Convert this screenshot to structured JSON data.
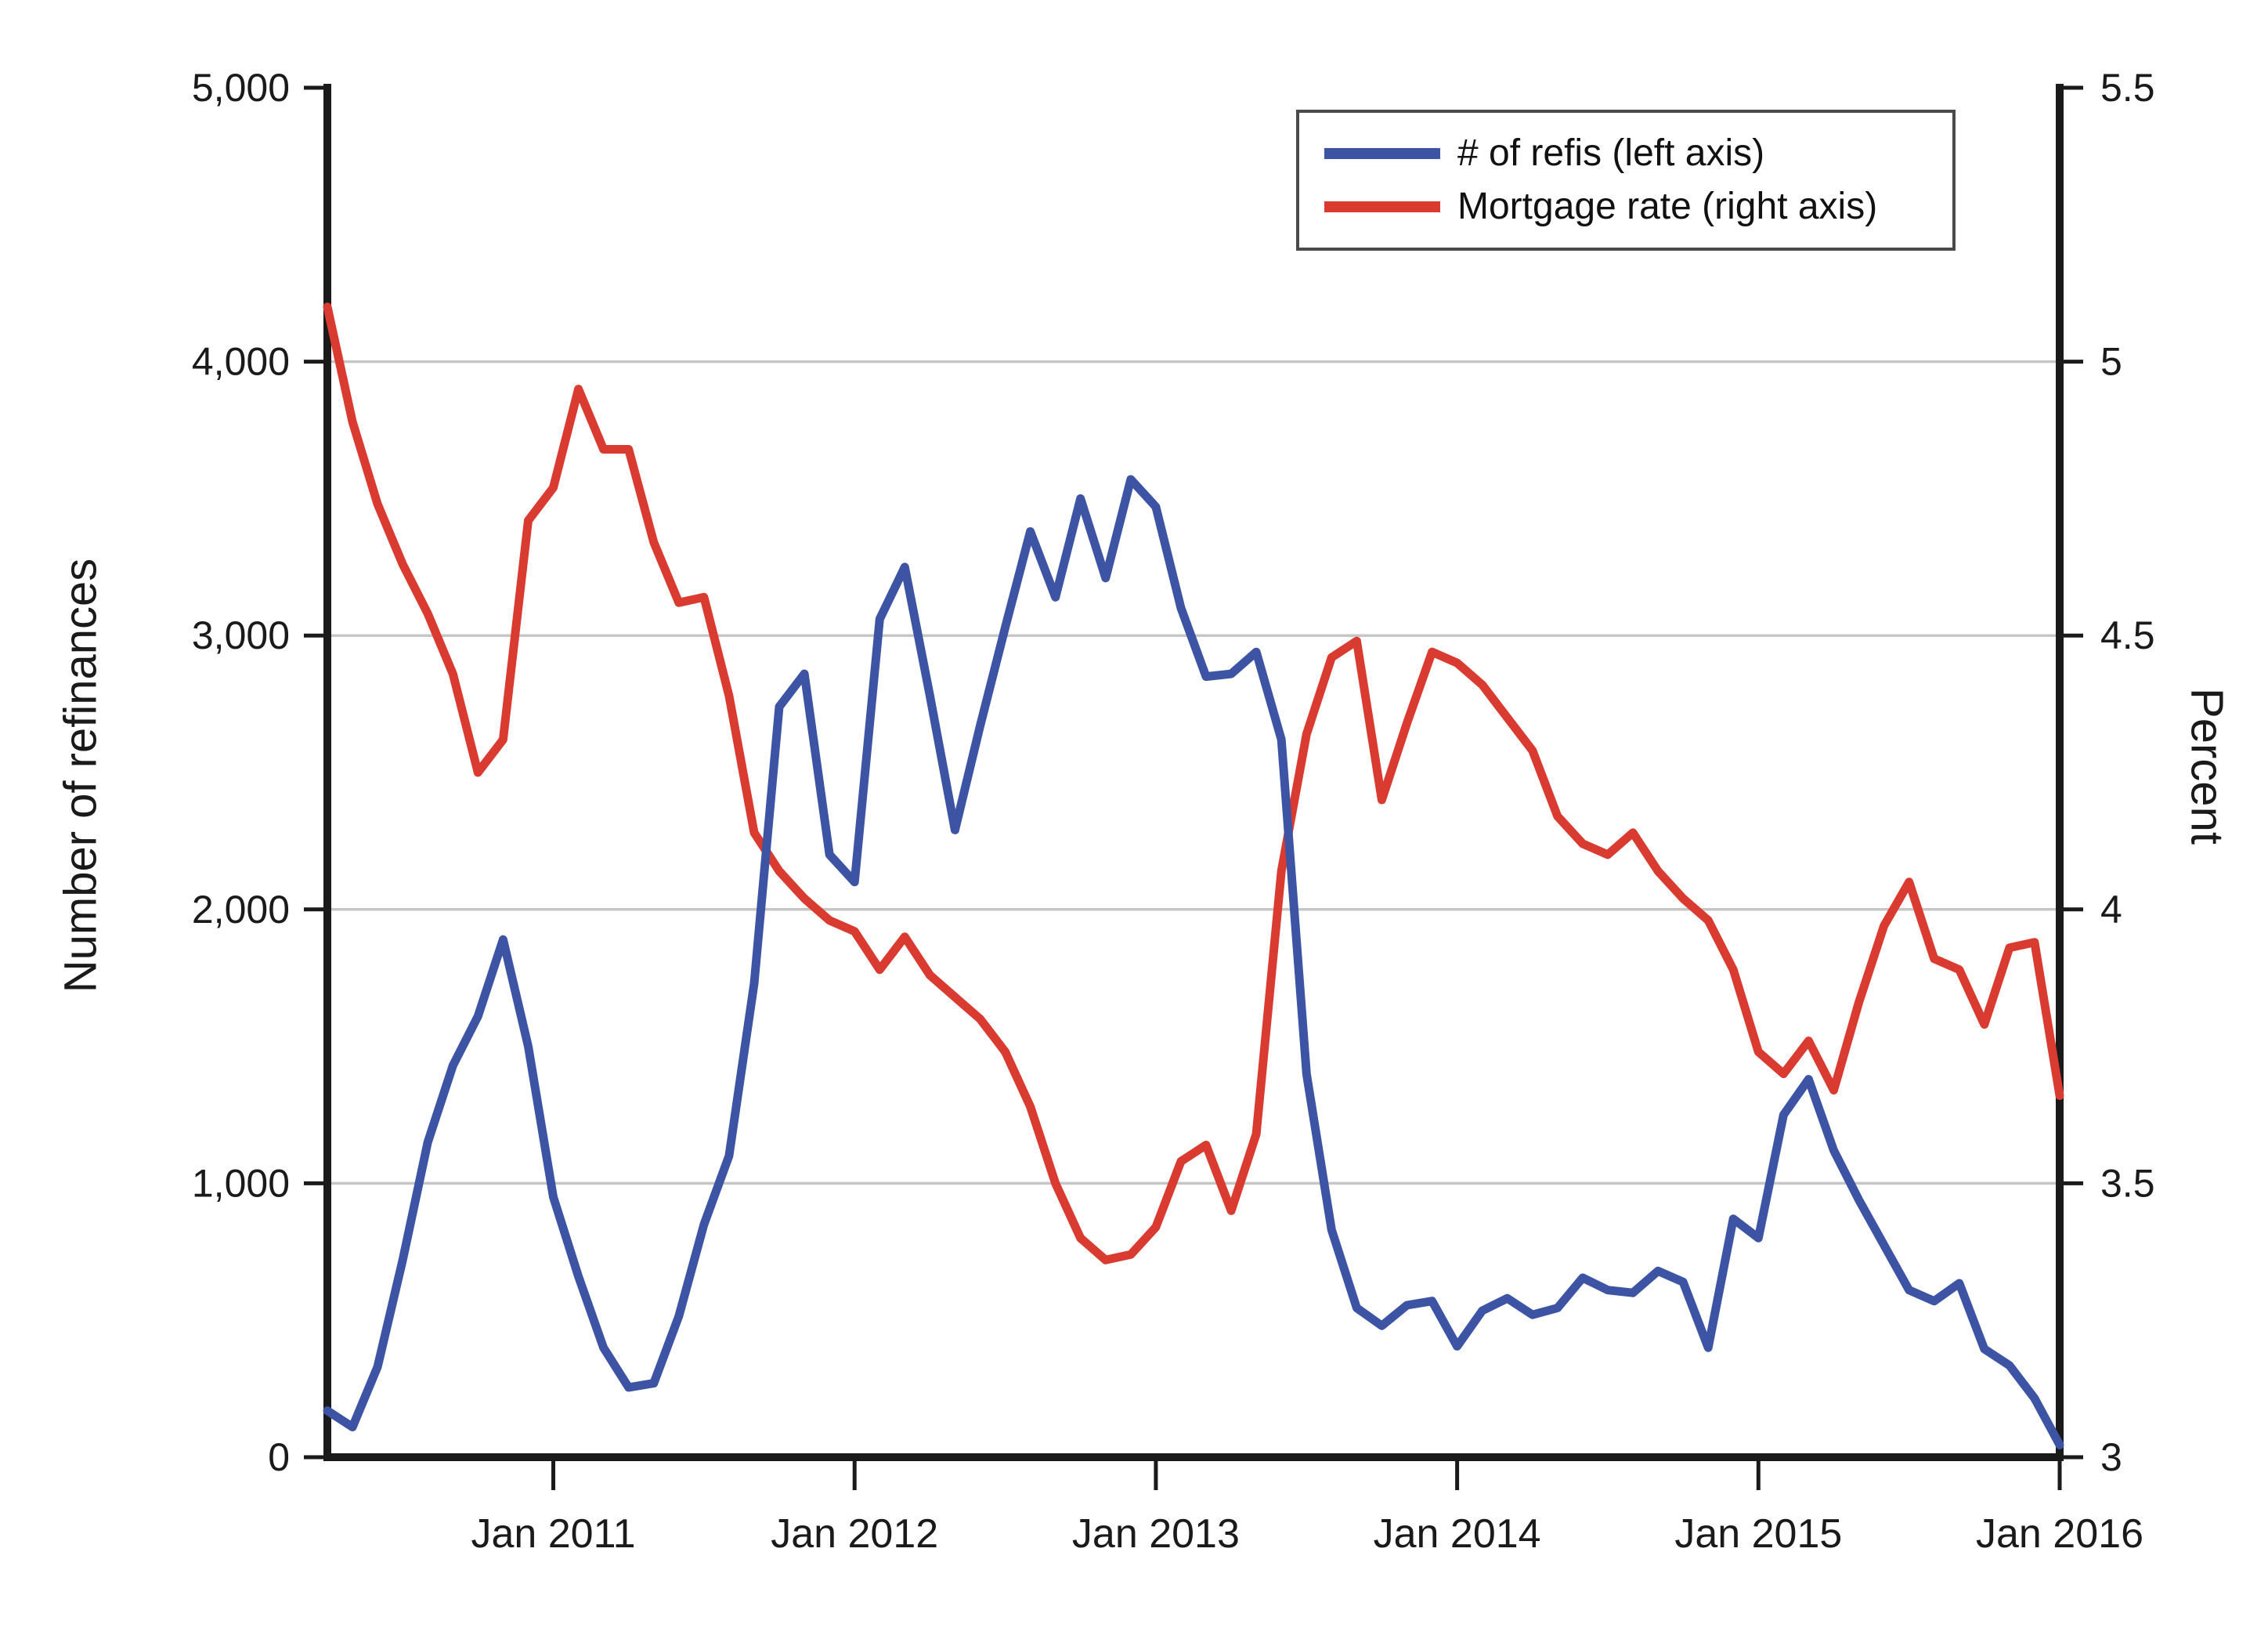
{
  "figure": {
    "left_axis_title": "Number of refinances",
    "right_axis_title": "Percent",
    "legend": [
      {
        "label": "# of refis (left axis)",
        "color": "#3d54a4"
      },
      {
        "label": "Mortgage rate (right axis)",
        "color": "#d93b31"
      }
    ]
  },
  "chart_data": {
    "type": "line",
    "title": "",
    "xlabel": "",
    "ylabel_left": "Number of refinances",
    "ylabel_right": "Percent",
    "grid": "horizontal",
    "legend_position": "top-right",
    "background": "#ffffff",
    "gridline_color": "#c6c6c6",
    "axis_color": "#1a1a1a",
    "months": [
      "Apr 2010",
      "May 2010",
      "Jun 2010",
      "Jul 2010",
      "Aug 2010",
      "Sep 2010",
      "Oct 2010",
      "Nov 2010",
      "Dec 2010",
      "Jan 2011",
      "Feb 2011",
      "Mar 2011",
      "Apr 2011",
      "May 2011",
      "Jun 2011",
      "Jul 2011",
      "Aug 2011",
      "Sep 2011",
      "Oct 2011",
      "Nov 2011",
      "Dec 2011",
      "Jan 2012",
      "Feb 2012",
      "Mar 2012",
      "Apr 2012",
      "May 2012",
      "Jun 2012",
      "Jul 2012",
      "Aug 2012",
      "Sep 2012",
      "Oct 2012",
      "Nov 2012",
      "Dec 2012",
      "Jan 2013",
      "Feb 2013",
      "Mar 2013",
      "Apr 2013",
      "May 2013",
      "Jun 2013",
      "Jul 2013",
      "Aug 2013",
      "Sep 2013",
      "Oct 2013",
      "Nov 2013",
      "Dec 2013",
      "Jan 2014",
      "Feb 2014",
      "Mar 2014",
      "Apr 2014",
      "May 2014",
      "Jun 2014",
      "Jul 2014",
      "Aug 2014",
      "Sep 2014",
      "Oct 2014",
      "Nov 2014",
      "Dec 2014",
      "Jan 2015",
      "Feb 2015",
      "Mar 2015",
      "Apr 2015",
      "May 2015",
      "Jun 2015",
      "Jul 2015",
      "Aug 2015",
      "Sep 2015",
      "Oct 2015",
      "Nov 2015",
      "Dec 2015",
      "Jan 2016"
    ],
    "series": [
      {
        "name": "# of refis (left axis)",
        "axis": "left",
        "color": "#3d54a4",
        "values": [
          170,
          110,
          330,
          720,
          1150,
          1430,
          1610,
          1890,
          1500,
          950,
          660,
          400,
          255,
          270,
          515,
          850,
          1100,
          1730,
          2740,
          2860,
          2200,
          2100,
          3060,
          3250,
          2780,
          2290,
          2670,
          3030,
          3380,
          3140,
          3500,
          3210,
          3570,
          3470,
          3100,
          2850,
          2860,
          2940,
          2620,
          1400,
          830,
          545,
          480,
          555,
          570,
          405,
          535,
          580,
          520,
          545,
          655,
          610,
          600,
          680,
          640,
          400,
          870,
          800,
          1250,
          1380,
          1120,
          940,
          775,
          610,
          570,
          635,
          395,
          335,
          215,
          45
        ]
      },
      {
        "name": "Mortgage rate (right axis)",
        "axis": "right",
        "color": "#d93b31",
        "values": [
          5.1,
          4.89,
          4.74,
          4.63,
          4.54,
          4.43,
          4.25,
          4.31,
          4.71,
          4.77,
          4.95,
          4.84,
          4.84,
          4.67,
          4.56,
          4.57,
          4.39,
          4.14,
          4.07,
          4.02,
          3.98,
          3.96,
          3.89,
          3.95,
          3.88,
          3.84,
          3.8,
          3.74,
          3.64,
          3.5,
          3.4,
          3.36,
          3.37,
          3.42,
          3.54,
          3.57,
          3.45,
          3.59,
          4.07,
          4.32,
          4.46,
          4.49,
          4.2,
          4.34,
          4.47,
          4.45,
          4.41,
          4.35,
          4.29,
          4.17,
          4.12,
          4.1,
          4.14,
          4.07,
          4.02,
          3.98,
          3.89,
          3.74,
          3.7,
          3.76,
          3.67,
          3.83,
          3.97,
          4.05,
          3.91,
          3.89,
          3.79,
          3.93,
          3.94,
          3.66
        ]
      }
    ],
    "left_axis": {
      "min": 0,
      "max": 5000,
      "ticks": [
        0,
        1000,
        2000,
        3000,
        4000,
        5000
      ],
      "tick_labels": [
        "0",
        "1,000",
        "2,000",
        "3,000",
        "4,000",
        "5,000"
      ]
    },
    "right_axis": {
      "min": 3,
      "max": 5.5,
      "ticks": [
        3,
        3.5,
        4,
        4.5,
        5,
        5.5
      ],
      "tick_labels": [
        "3",
        "3.5",
        "4",
        "4.5",
        "5",
        "5.5"
      ]
    },
    "x_ticks": [
      {
        "label": "Jan 2011",
        "index": 9
      },
      {
        "label": "Jan 2012",
        "index": 21
      },
      {
        "label": "Jan 2013",
        "index": 33
      },
      {
        "label": "Jan 2014",
        "index": 45
      },
      {
        "label": "Jan 2015",
        "index": 57
      },
      {
        "label": "Jan 2016",
        "index": 69
      }
    ],
    "gridlines_left_values": [
      1000,
      2000,
      3000,
      4000
    ]
  }
}
